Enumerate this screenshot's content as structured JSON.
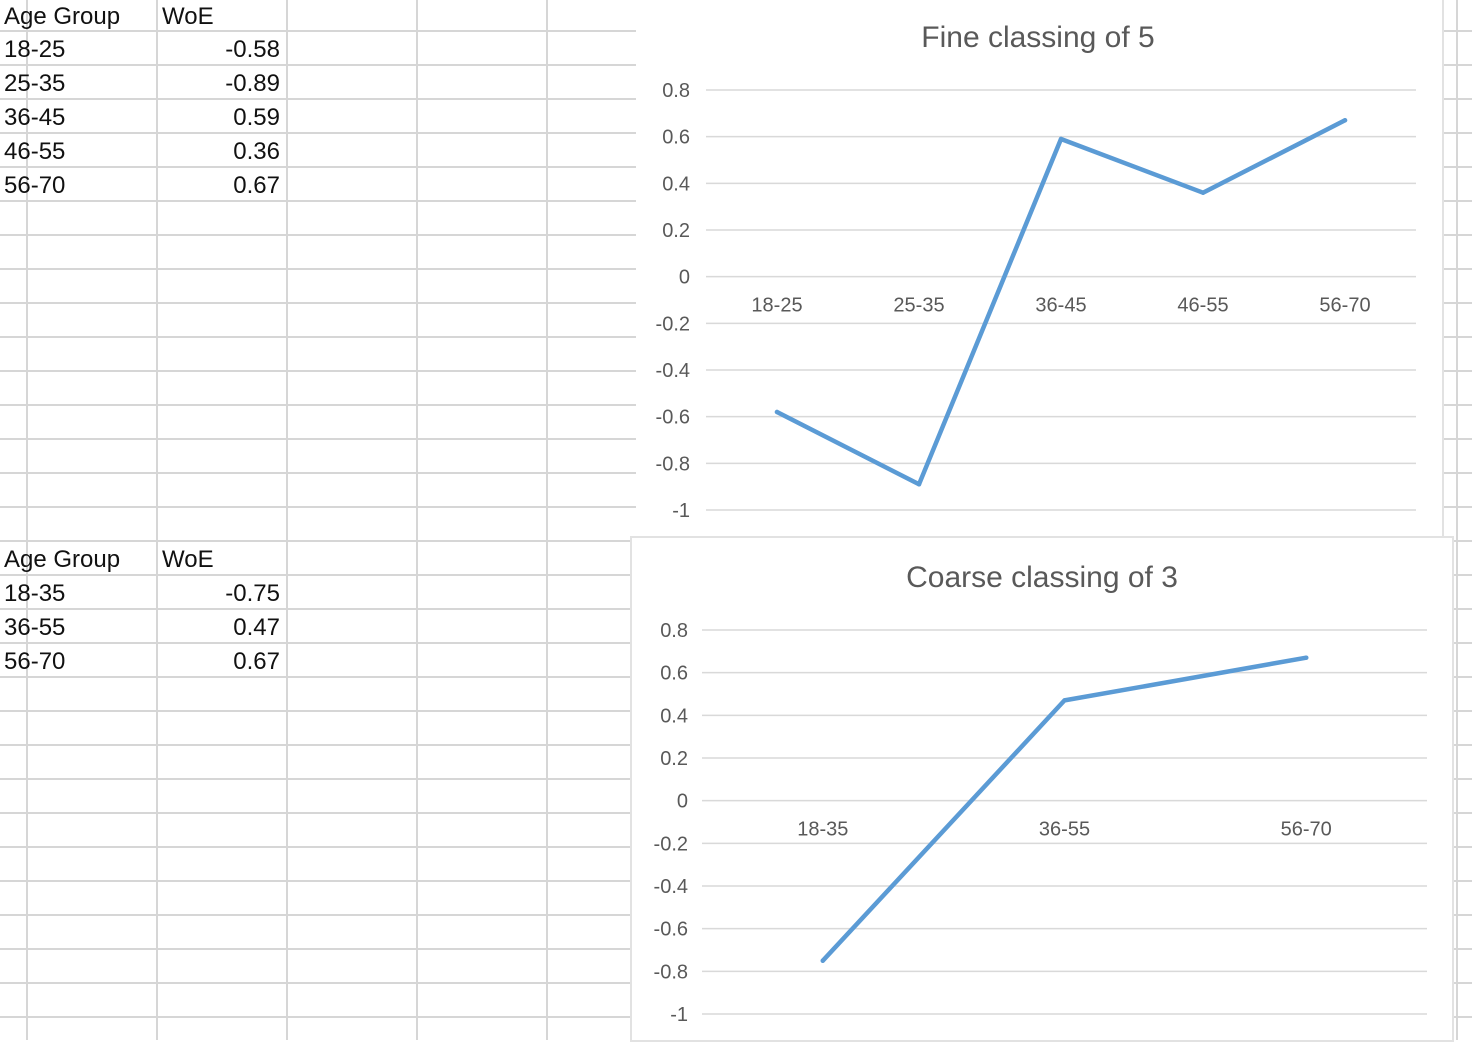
{
  "sheet": {
    "table1": {
      "headers": [
        "Age Group",
        "WoE"
      ],
      "rows": [
        {
          "group": "18-25",
          "woe": "-0.58"
        },
        {
          "group": "25-35",
          "woe": "-0.89"
        },
        {
          "group": "36-45",
          "woe": "0.59"
        },
        {
          "group": "46-55",
          "woe": "0.36"
        },
        {
          "group": "56-70",
          "woe": "0.67"
        }
      ]
    },
    "table2": {
      "headers": [
        "Age Group",
        "WoE"
      ],
      "rows": [
        {
          "group": "18-35",
          "woe": "-0.75"
        },
        {
          "group": "36-55",
          "woe": "0.47"
        },
        {
          "group": "56-70",
          "woe": "0.67"
        }
      ]
    }
  },
  "chart_data": [
    {
      "type": "line",
      "title": "Fine classing of 5",
      "categories": [
        "18-25",
        "25-35",
        "36-45",
        "46-55",
        "56-70"
      ],
      "values": [
        -0.58,
        -0.89,
        0.59,
        0.36,
        0.67
      ],
      "ylim": [
        -1,
        0.8
      ],
      "yticks": [
        "0.8",
        "0.6",
        "0.4",
        "0.2",
        "0",
        "-0.2",
        "-0.4",
        "-0.6",
        "-0.8",
        "-1"
      ],
      "grid": true,
      "line_color": "#5B9BD5",
      "xlabel": "",
      "ylabel": ""
    },
    {
      "type": "line",
      "title": "Coarse classing of 3",
      "categories": [
        "18-35",
        "36-55",
        "56-70"
      ],
      "values": [
        -0.75,
        0.47,
        0.67
      ],
      "ylim": [
        -1,
        0.8
      ],
      "yticks": [
        "0.8",
        "0.6",
        "0.4",
        "0.2",
        "0",
        "-0.2",
        "-0.4",
        "-0.6",
        "-0.8",
        "-1"
      ],
      "grid": true,
      "line_color": "#5B9BD5",
      "xlabel": "",
      "ylabel": ""
    }
  ]
}
